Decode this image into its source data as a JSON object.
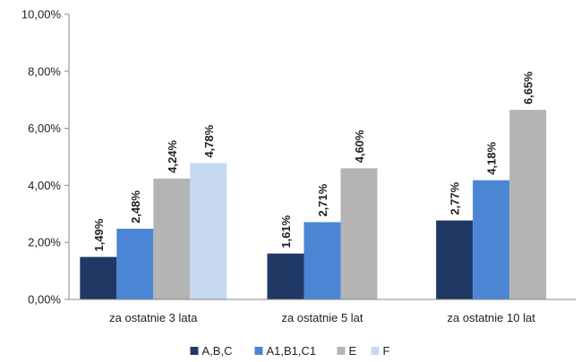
{
  "chart_data": {
    "type": "bar",
    "title": "",
    "xlabel": "",
    "ylabel": "",
    "ylim": [
      0,
      10
    ],
    "yticks": [
      0,
      2,
      4,
      6,
      8,
      10
    ],
    "ytick_labels": [
      "0,00%",
      "2,00%",
      "4,00%",
      "6,00%",
      "8,00%",
      "10,00%"
    ],
    "grid": false,
    "legend_position": "bottom",
    "categories": [
      "za ostatnie 3 lata",
      "za ostatnie 5 lat",
      "za ostatnie 10 lat"
    ],
    "series": [
      {
        "name": "A,B,C",
        "color": "#1f3864",
        "values": [
          1.49,
          1.61,
          2.77
        ],
        "labels": [
          "1,49%",
          "1,61%",
          "2,77%"
        ]
      },
      {
        "name": "A1,B1,C1",
        "color": "#4a86d4",
        "values": [
          2.48,
          2.71,
          4.18
        ],
        "labels": [
          "2,48%",
          "2,71%",
          "4,18%"
        ]
      },
      {
        "name": "E",
        "color": "#b4b4b4",
        "values": [
          4.24,
          4.6,
          6.65
        ],
        "labels": [
          "4,24%",
          "4,60%",
          "6,65%"
        ]
      },
      {
        "name": "F",
        "color": "#c6d9f0",
        "values": [
          4.78,
          null,
          null
        ],
        "labels": [
          "4,78%",
          null,
          null
        ]
      }
    ]
  }
}
